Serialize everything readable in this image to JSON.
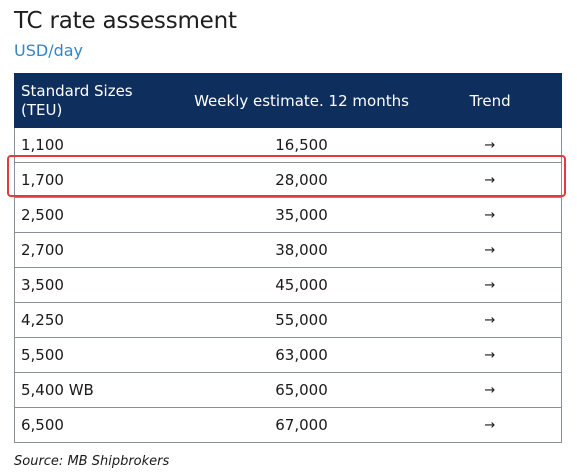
{
  "header": {
    "title": "TC rate assessment",
    "subtitle": "USD/day"
  },
  "table": {
    "columns": [
      "Standard Sizes\n(TEU)",
      "Weekly estimate. 12 months",
      "Trend"
    ],
    "column_line1": "Standard Sizes",
    "column_line2": "(TEU)",
    "rows": [
      {
        "size": "1,100",
        "estimate": "16,500",
        "trend": "→"
      },
      {
        "size": "1,700",
        "estimate": "28,000",
        "trend": "→"
      },
      {
        "size": "2,500",
        "estimate": "35,000",
        "trend": "→"
      },
      {
        "size": "2,700",
        "estimate": "38,000",
        "trend": "→"
      },
      {
        "size": "3,500",
        "estimate": "45,000",
        "trend": "→"
      },
      {
        "size": "4,250",
        "estimate": "55,000",
        "trend": "→"
      },
      {
        "size": "5,500",
        "estimate": "63,000",
        "trend": "→"
      },
      {
        "size": "5,400 WB",
        "estimate": "65,000",
        "trend": "→"
      },
      {
        "size": "6,500",
        "estimate": "67,000",
        "trend": "→"
      }
    ],
    "highlighted_row": "1,700"
  },
  "footer": {
    "source": "Source: MB Shipbrokers"
  },
  "colors": {
    "header_bg": "#0e2f5e",
    "subtitle": "#2f86c9",
    "highlight_border": "#e23b3b"
  }
}
